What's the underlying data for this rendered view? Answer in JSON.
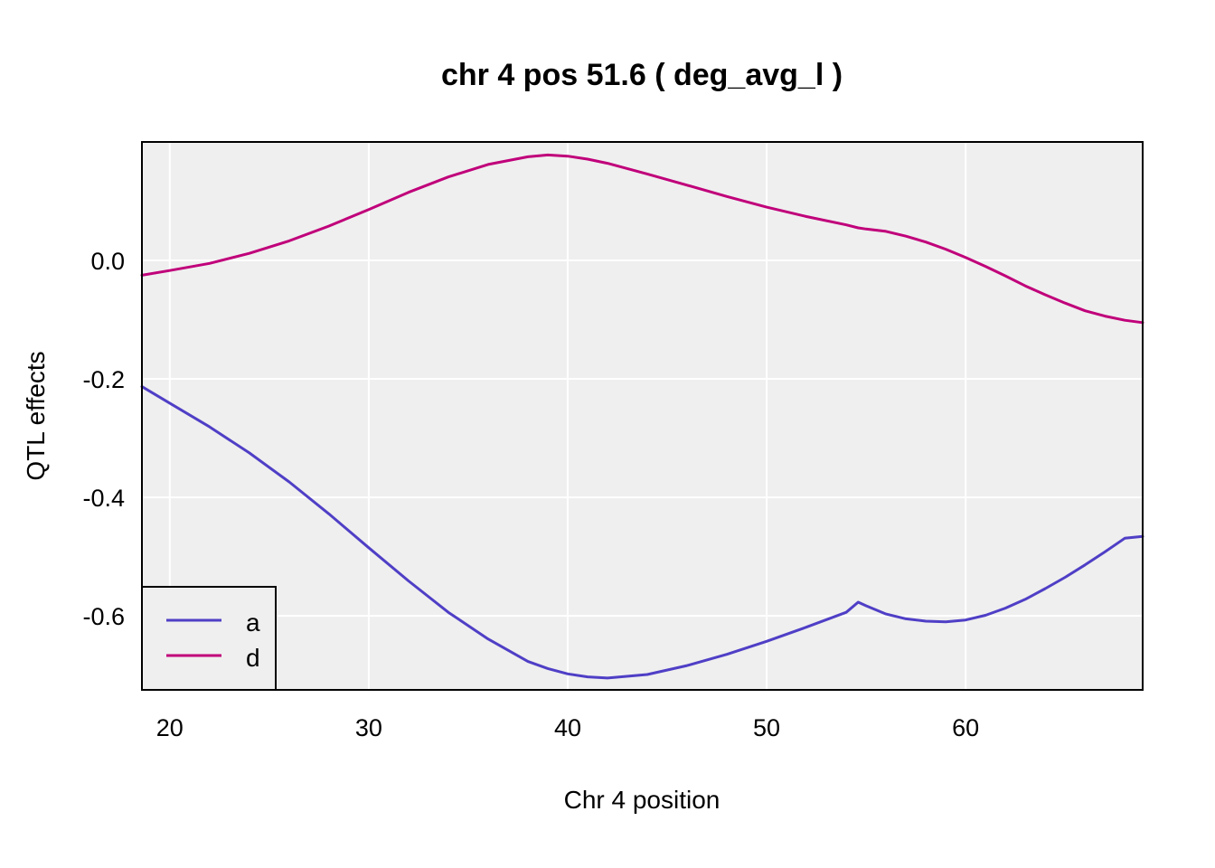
{
  "chart_data": {
    "type": "line",
    "title": "chr 4 pos 51.6 ( deg_avg_l )",
    "xlabel": "Chr 4 position",
    "ylabel": "QTL effects",
    "xlim": [
      18.6,
      68.9
    ],
    "ylim": [
      -0.725,
      0.2
    ],
    "xticks": [
      20,
      30,
      40,
      50,
      60
    ],
    "yticks": [
      0.0,
      -0.2,
      -0.4,
      -0.6
    ],
    "ytick_labels": [
      "0.0",
      "-0.2",
      "-0.4",
      "-0.6"
    ],
    "grid": true,
    "legend": "bottom-left",
    "x": [
      18.6,
      20,
      22,
      24,
      26,
      28,
      30,
      32,
      34,
      36,
      38,
      39,
      40,
      41,
      42,
      44,
      46,
      48,
      50,
      52,
      54,
      54.6,
      55,
      56,
      57,
      58,
      59,
      60,
      61,
      62,
      63,
      64,
      65,
      66,
      67,
      68,
      68.9
    ],
    "series": [
      {
        "name": "a",
        "color": "#4f3fc6",
        "values": [
          -0.213,
          -0.241,
          -0.281,
          -0.325,
          -0.374,
          -0.428,
          -0.485,
          -0.541,
          -0.594,
          -0.639,
          -0.677,
          -0.689,
          -0.698,
          -0.703,
          -0.705,
          -0.699,
          -0.684,
          -0.665,
          -0.643,
          -0.619,
          -0.594,
          -0.577,
          -0.583,
          -0.597,
          -0.605,
          -0.609,
          -0.61,
          -0.607,
          -0.599,
          -0.587,
          -0.572,
          -0.554,
          -0.535,
          -0.514,
          -0.492,
          -0.469,
          -0.466
        ]
      },
      {
        "name": "d",
        "color": "#c0007a",
        "values": [
          -0.025,
          -0.017,
          -0.005,
          0.012,
          0.033,
          0.058,
          0.086,
          0.115,
          0.141,
          0.162,
          0.175,
          0.178,
          0.176,
          0.171,
          0.164,
          0.146,
          0.127,
          0.108,
          0.09,
          0.074,
          0.06,
          0.055,
          0.053,
          0.049,
          0.041,
          0.031,
          0.019,
          0.005,
          -0.01,
          -0.026,
          -0.043,
          -0.058,
          -0.072,
          -0.085,
          -0.094,
          -0.101,
          -0.105
        ]
      }
    ]
  }
}
